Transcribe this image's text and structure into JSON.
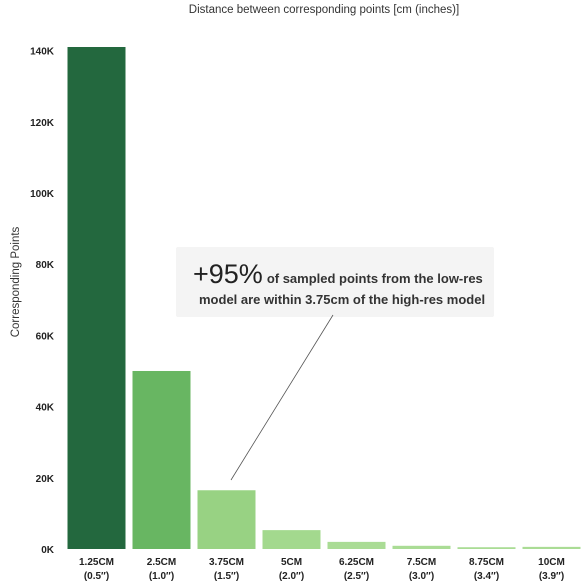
{
  "chart_data": {
    "type": "bar",
    "title": "Distance between corresponding points [cm (inches)]",
    "xlabel": "",
    "ylabel": "Corresponding Points",
    "ylim": [
      0,
      145000
    ],
    "yticks": [
      "0K",
      "20K",
      "40K",
      "60K",
      "80K",
      "100K",
      "120K",
      "140K"
    ],
    "ytick_values": [
      0,
      20000,
      40000,
      60000,
      80000,
      100000,
      120000,
      140000
    ],
    "categories": [
      "1.25CM",
      "2.5CM",
      "3.75CM",
      "5CM",
      "6.25CM",
      "7.5CM",
      "8.75CM",
      "10CM"
    ],
    "categories_inches": [
      "(0.5″)",
      "(1.0″)",
      "(1.5″)",
      "(2.0″)",
      "(2.5″)",
      "(3.0″)",
      "(3.4″)",
      "(3.9″)"
    ],
    "values": [
      141000,
      50000,
      16500,
      5300,
      2000,
      900,
      500,
      600
    ],
    "bar_colors": [
      "#23683e",
      "#68b662",
      "#98d283",
      "#a3d98e",
      "#aadc95",
      "#aadc95",
      "#aadc95",
      "#aadc95"
    ],
    "grid": false,
    "legend": "none",
    "annotation": {
      "highlight": "+95%",
      "text_line1": "of sampled points from the low-res",
      "text_line2": "model are within 3.75cm of the high-res model",
      "points_to": "3.75CM"
    }
  }
}
